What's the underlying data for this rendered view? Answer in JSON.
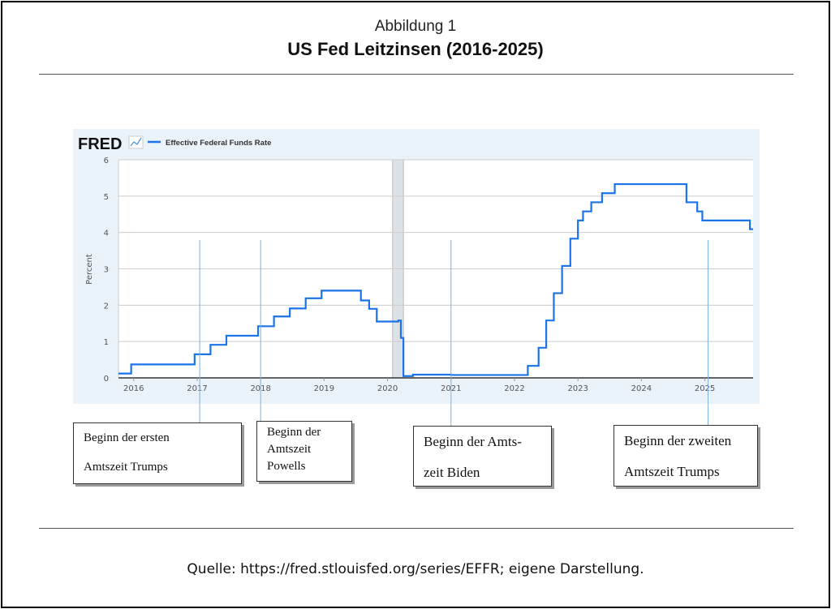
{
  "figure_label": "Abbildung 1",
  "title": "US Fed Leitzinsen (2016-2025)",
  "source": "Quelle: https://fred.stlouisfed.org/series/EFFR; eigene Darstellung.",
  "chart_data": {
    "type": "line",
    "brand": "FRED",
    "legend": "Effective Federal Funds Rate",
    "ylabel": "Percent",
    "xlabel": "",
    "xlim": [
      2015.76,
      2025.76
    ],
    "ylim": [
      0,
      6
    ],
    "yticks": [
      "0",
      "1",
      "2",
      "3",
      "4",
      "5",
      "6"
    ],
    "xticks": [
      "2016",
      "2017",
      "2018",
      "2019",
      "2020",
      "2021",
      "2022",
      "2023",
      "2024",
      "2025"
    ],
    "grid": true,
    "line_color": "#1a73e8",
    "recession": [
      2020.08,
      2020.25
    ],
    "series": [
      {
        "name": "Effective Federal Funds Rate",
        "step": true,
        "x": [
          2015.76,
          2015.96,
          2016.96,
          2017.21,
          2017.46,
          2017.96,
          2018.21,
          2018.46,
          2018.71,
          2018.96,
          2019.58,
          2019.71,
          2019.83,
          2020.17,
          2020.21,
          2020.25,
          2020.4,
          2021.0,
          2021.5,
          2022.21,
          2022.38,
          2022.5,
          2022.62,
          2022.75,
          2022.88,
          2023.0,
          2023.08,
          2023.21,
          2023.38,
          2023.58,
          2024.71,
          2024.88,
          2024.96,
          2025.71,
          2025.76
        ],
        "values": [
          0.12,
          0.37,
          0.65,
          0.91,
          1.16,
          1.42,
          1.69,
          1.91,
          2.19,
          2.4,
          2.13,
          1.9,
          1.55,
          1.58,
          1.1,
          0.05,
          0.09,
          0.08,
          0.08,
          0.33,
          0.83,
          1.58,
          2.33,
          3.08,
          3.83,
          4.33,
          4.58,
          4.83,
          5.08,
          5.33,
          4.83,
          4.58,
          4.33,
          4.09,
          4.09
        ]
      }
    ],
    "annotations": [
      {
        "year": 2017.04,
        "lines": [
          "Beginn der ersten",
          "Amtszeit Trumps"
        ]
      },
      {
        "year": 2018.0,
        "lines": [
          "Beginn der",
          "Amtszeit",
          "Powells"
        ]
      },
      {
        "year": 2021.0,
        "lines": [
          "Beginn der Amts-",
          "zeit Biden"
        ]
      },
      {
        "year": 2025.05,
        "lines": [
          "Beginn der zweiten",
          "Amtszeit Trumps"
        ]
      }
    ]
  }
}
